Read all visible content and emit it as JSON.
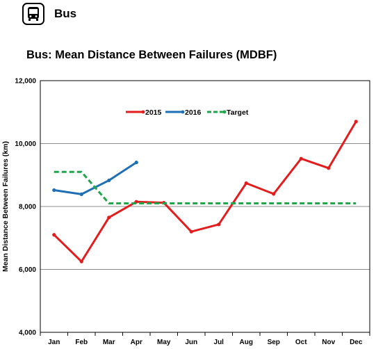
{
  "header": {
    "label": "Bus",
    "icon": "bus-icon"
  },
  "chart_data": {
    "type": "line",
    "title": "Bus: Mean Distance Between Failures (MDBF)",
    "xlabel": "",
    "ylabel": "Mean Distance Between Failures (km)",
    "categories": [
      "Jan",
      "Feb",
      "Mar",
      "Apr",
      "May",
      "Jun",
      "Jul",
      "Aug",
      "Sep",
      "Oct",
      "Nov",
      "Dec"
    ],
    "ylim": [
      4000,
      12000
    ],
    "yticks": [
      4000,
      6000,
      8000,
      10000,
      12000
    ],
    "ytick_labels": [
      "4,000",
      "6,000",
      "8,000",
      "10,000",
      "12,000"
    ],
    "grid": "horizontal",
    "legend": "top-center inside plot",
    "series": [
      {
        "name": "2015",
        "color": "#e31d1d",
        "style": "solid",
        "markers": true,
        "values": [
          7100,
          6250,
          7650,
          8150,
          8120,
          7200,
          7430,
          8740,
          8400,
          9520,
          9220,
          10700
        ]
      },
      {
        "name": "2016",
        "color": "#1f6fb5",
        "style": "solid",
        "markers": true,
        "values": [
          8520,
          8390,
          8830,
          9400,
          null,
          null,
          null,
          null,
          null,
          null,
          null,
          null
        ]
      },
      {
        "name": "Target",
        "color": "#1fa64a",
        "style": "dashed",
        "markers": false,
        "values": [
          9100,
          9100,
          8100,
          8100,
          8100,
          8100,
          8100,
          8100,
          8100,
          8100,
          8100,
          8100
        ]
      }
    ]
  }
}
